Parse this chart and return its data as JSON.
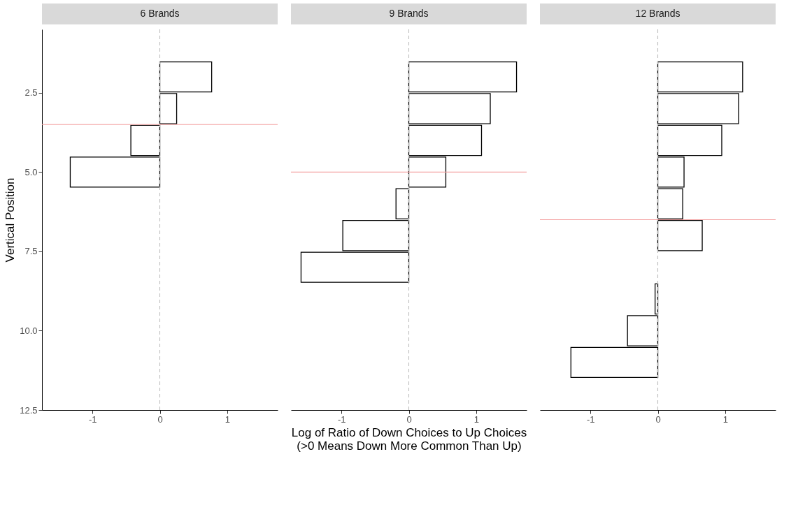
{
  "chart_data": [
    {
      "type": "bar",
      "orientation": "horizontal",
      "title": "6 Brands",
      "ylabel": "Vertical Position",
      "x": [
        2,
        3,
        4,
        5
      ],
      "values": [
        0.77,
        0.25,
        -0.43,
        -1.33
      ],
      "color": "#ffffff",
      "xlim": [
        -1.75,
        1.75
      ],
      "xticks": [
        -1,
        0,
        1
      ],
      "ylim": [
        12.5,
        0.5
      ],
      "yticks": [
        2.5,
        {
          "value": 5,
          "label": "5.0"
        },
        7.5,
        {
          "value": 10,
          "label": "10.0"
        },
        12.5
      ],
      "ref_lines": [
        {
          "axis": "x",
          "value": 0,
          "color": "#bdbdbd",
          "line_style": "dashed"
        },
        {
          "axis": "y",
          "value": 3.5,
          "color": "#f4a3a3"
        }
      ]
    },
    {
      "type": "bar",
      "orientation": "horizontal",
      "title": "9 Brands",
      "xlabel": "Log of Ratio of Down Choices to Up Choices\n(>0 Means Down More Common Than Up)",
      "x": [
        2,
        3,
        4,
        5,
        6,
        7,
        8
      ],
      "values": [
        1.6,
        1.21,
        1.08,
        0.55,
        -0.19,
        -0.98,
        -1.6
      ],
      "color": "#ffffff",
      "xlim": [
        -1.75,
        1.75
      ],
      "xticks": [
        -1,
        0,
        1
      ],
      "ylim": [
        12.5,
        0.5
      ],
      "tick_labels": "x",
      "ref_lines": [
        {
          "axis": "x",
          "value": 0,
          "color": "#bdbdbd",
          "line_style": "dashed"
        },
        {
          "axis": "y",
          "value": 5.0,
          "color": "#f4a3a3"
        }
      ]
    },
    {
      "type": "bar",
      "orientation": "horizontal",
      "title": "12 Brands",
      "x": [
        2,
        3,
        4,
        5,
        6,
        7,
        9,
        10,
        11
      ],
      "values": [
        1.26,
        1.2,
        0.95,
        0.39,
        0.37,
        0.66,
        -0.04,
        -0.45,
        -1.29
      ],
      "color": "#ffffff",
      "xlim": [
        -1.75,
        1.75
      ],
      "xticks": [
        -1,
        0,
        1
      ],
      "ylim": [
        12.5,
        0.5
      ],
      "tick_labels": "x",
      "ref_lines": [
        {
          "axis": "x",
          "value": 0,
          "color": "#bdbdbd",
          "line_style": "dashed"
        },
        {
          "axis": "y",
          "value": 6.5,
          "color": "#f4a3a3"
        }
      ]
    }
  ]
}
